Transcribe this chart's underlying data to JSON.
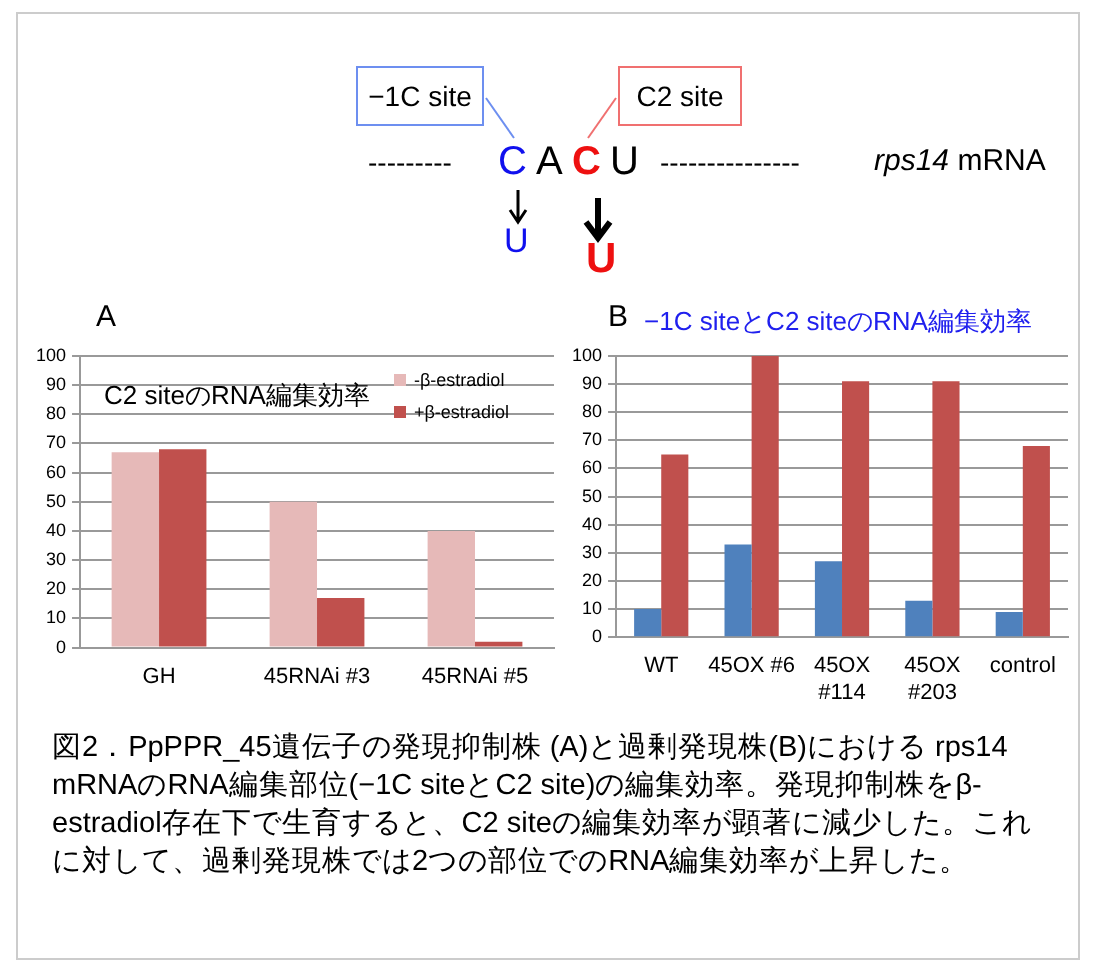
{
  "chart_data": [
    {
      "type": "other",
      "annotations": [
        "−1C site",
        "C2 site",
        "---------",
        "C",
        "A",
        "C",
        "U",
        "---------------",
        "rps14 mRNA",
        "U",
        "U"
      ]
    },
    {
      "type": "bar",
      "title": "A",
      "subtitle": "C2 siteのRNA編集効率",
      "categories": [
        "GH",
        "45RNAi #3",
        "45RNAi #5"
      ],
      "series": [
        {
          "name": "-β-estradiol",
          "color": "#e6b9b8",
          "values": [
            67,
            50,
            40
          ]
        },
        {
          "name": "+β-estradiol",
          "color": "#c0504d",
          "values": [
            68,
            17,
            2
          ]
        }
      ],
      "ylim": [
        0,
        100
      ],
      "yticks": [
        0,
        10,
        20,
        30,
        40,
        50,
        60,
        70,
        80,
        90,
        100
      ],
      "grid": "y",
      "legend": "top right"
    },
    {
      "type": "bar",
      "title": "B",
      "subtitle": "−1C siteとC2 siteのRNA編集効率",
      "categories": [
        "WT",
        "45OX #6",
        "45OX\n#114",
        "45OX\n#203",
        "control"
      ],
      "series": [
        {
          "color": "#4f81bd",
          "values": [
            10,
            33,
            27,
            13,
            9
          ]
        },
        {
          "color": "#c0504d",
          "values": [
            65,
            100,
            91,
            91,
            68
          ]
        }
      ],
      "ylim": [
        0,
        100
      ],
      "yticks": [
        0,
        10,
        20,
        30,
        40,
        50,
        60,
        70,
        80,
        90,
        100
      ],
      "grid": "y",
      "annotations": [
        "図2．PpPPR_45遺伝子の発現抑制株 (A)と過剰発現株(B)における rps14 mRNAのRNA編集部位(−1C siteとC2 site)の編集効率。発現抑制株をβ-estradiol存在下で生育すると、C2 siteの編集効率が顕著に減少した。これに対して、過剰発現株では2つの部位でのRNA編集効率が上昇した。"
      ]
    }
  ]
}
